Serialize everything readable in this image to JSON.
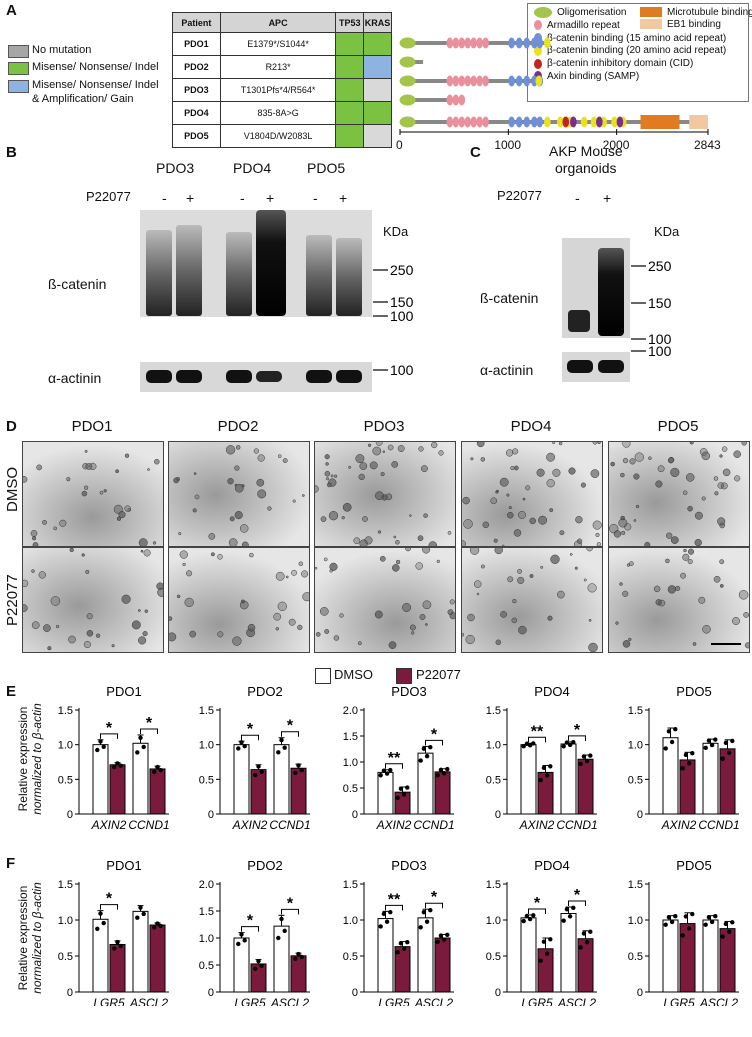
{
  "panels": {
    "A": "A",
    "B": "B",
    "C": "C",
    "D": "D",
    "E": "E",
    "F": "F"
  },
  "legend": {
    "items": [
      {
        "label": "No mutation",
        "color": "#a6a6a6"
      },
      {
        "label": "Misense/ Nonsense/ Indel",
        "color": "#7cc242"
      },
      {
        "label": "Misense/ Nonsense/ Indel",
        "label2": "& Amplification/ Gain",
        "color": "#8fb3e0"
      }
    ]
  },
  "table": {
    "headers": [
      "Patient",
      "APC",
      "TP53",
      "KRAS"
    ],
    "rows": [
      {
        "patient": "PDO1",
        "apc": "E1379*/S1044*",
        "tp53": "#7cc242",
        "kras": "#7cc242"
      },
      {
        "patient": "PDO2",
        "apc": "R213*",
        "tp53": "#7cc242",
        "kras": "#8fb3e0"
      },
      {
        "patient": "PDO3",
        "apc": "T1301Pfs*4/R564*",
        "tp53": "#7cc242",
        "kras": "#d9d9d9"
      },
      {
        "patient": "PDO4",
        "apc": "835-8A>G",
        "tp53": "#7cc242",
        "kras": "#7cc242"
      },
      {
        "patient": "PDO5",
        "apc": "V1804D/W2083L",
        "tp53": "#7cc242",
        "kras": "#d9d9d9"
      }
    ]
  },
  "domain_legend": [
    {
      "label": "Oligomerisation",
      "color": "#a4c44a",
      "shape": "ellipse"
    },
    {
      "label": "Armadillo repeat",
      "color": "#e9909c",
      "shape": "ellipse"
    },
    {
      "label": "β-catenin binding (15 amino acid repeat)",
      "color": "#6f8fd8",
      "shape": "ellipse"
    },
    {
      "label": "β-catenin binding (20 amino acid repeat)",
      "color": "#e9e21e",
      "shape": "ellipse"
    },
    {
      "label": "β-catenin inhibitory domain (CID)",
      "color": "#c4231f",
      "shape": "ellipse"
    },
    {
      "label": "Axin binding (SAMP)",
      "color": "#7a2e8e",
      "shape": "ellipse"
    },
    {
      "label": "Microtubule binding",
      "color": "#e07b22",
      "shape": "rect"
    },
    {
      "label": "EB1 binding",
      "color": "#f2c8a0",
      "shape": "rect"
    }
  ],
  "protein_axis": {
    "ticks": [
      "0",
      "1000",
      "2000",
      "2843"
    ]
  },
  "blotB": {
    "samples": [
      "PDO3",
      "PDO4",
      "PDO5"
    ],
    "treatment": "P22077",
    "signs": [
      "-",
      "+",
      "-",
      "+",
      "-",
      "+"
    ],
    "kda": "KDa",
    "markers": [
      "250",
      "150",
      "100",
      "100"
    ],
    "row1": "ß-catenin",
    "row2": "α-actinin"
  },
  "blotC": {
    "title1": "AKP Mouse",
    "title2": "organoids",
    "treatment": "P22077",
    "signs": [
      "-",
      "+"
    ],
    "kda": "KDa",
    "markers": [
      "250",
      "150",
      "100",
      "100"
    ],
    "row1": "ß-catenin",
    "row2": "α-actinin"
  },
  "panelD": {
    "columns": [
      "PDO1",
      "PDO2",
      "PDO3",
      "PDO4",
      "PDO5"
    ],
    "rows": [
      "DMSO",
      "P22077"
    ]
  },
  "chart_legend": {
    "dmso": "DMSO",
    "treated": "P22077",
    "dmso_color": "#ffffff",
    "treated_color": "#7a1a3c"
  },
  "ylabel_line1": "Relative expression",
  "ylabel_line2": "normalized to β-actin",
  "chart_data": [
    {
      "type": "bar",
      "title": "PDO1",
      "row": "E",
      "categories": [
        "AXIN2",
        "CCND1"
      ],
      "ylim": [
        0,
        1.5
      ],
      "yticks": [
        "0",
        "0.5",
        "1.0",
        "1.5"
      ],
      "series": [
        {
          "name": "DMSO",
          "values": [
            1.0,
            1.02
          ],
          "err": [
            0.07,
            0.12
          ]
        },
        {
          "name": "P22077",
          "values": [
            0.71,
            0.65
          ],
          "err": [
            0.03,
            0.04
          ]
        }
      ],
      "sig": [
        "*",
        "*"
      ]
    },
    {
      "type": "bar",
      "title": "PDO2",
      "row": "E",
      "categories": [
        "AXIN2",
        "CCND1"
      ],
      "ylim": [
        0,
        1.5
      ],
      "yticks": [
        "0",
        "0.5",
        "1.0",
        "1.5"
      ],
      "series": [
        {
          "name": "DMSO",
          "values": [
            1.0,
            1.0
          ],
          "err": [
            0.05,
            0.1
          ]
        },
        {
          "name": "P22077",
          "values": [
            0.64,
            0.66
          ],
          "err": [
            0.07,
            0.06
          ]
        }
      ],
      "sig": [
        "*",
        "*"
      ]
    },
    {
      "type": "bar",
      "title": "PDO3",
      "row": "E",
      "categories": [
        "AXIN2",
        "CCND1"
      ],
      "ylim": [
        0,
        2.0
      ],
      "yticks": [
        "0",
        "0.5",
        "1.0",
        "1.5",
        "2.0"
      ],
      "series": [
        {
          "name": "DMSO",
          "values": [
            0.8,
            1.17
          ],
          "err": [
            0.05,
            0.13
          ]
        },
        {
          "name": "P22077",
          "values": [
            0.42,
            0.81
          ],
          "err": [
            0.1,
            0.06
          ]
        }
      ],
      "sig": [
        "**",
        "*"
      ]
    },
    {
      "type": "bar",
      "title": "PDO4",
      "row": "E",
      "categories": [
        "AXIN2",
        "CCND1"
      ],
      "ylim": [
        0,
        1.5
      ],
      "yticks": [
        "0",
        "0.5",
        "1.0",
        "1.5"
      ],
      "series": [
        {
          "name": "DMSO",
          "values": [
            1.0,
            1.01
          ],
          "err": [
            0.02,
            0.03
          ]
        },
        {
          "name": "P22077",
          "values": [
            0.6,
            0.79
          ],
          "err": [
            0.1,
            0.06
          ]
        }
      ],
      "sig": [
        "**",
        "*"
      ]
    },
    {
      "type": "bar",
      "title": "PDO5",
      "row": "E",
      "categories": [
        "AXIN2",
        "CCND1"
      ],
      "ylim": [
        0,
        1.5
      ],
      "yticks": [
        "0",
        "0.5",
        "1.0",
        "1.5"
      ],
      "series": [
        {
          "name": "DMSO",
          "values": [
            1.1,
            1.02
          ],
          "err": [
            0.14,
            0.06
          ]
        },
        {
          "name": "P22077",
          "values": [
            0.78,
            0.94
          ],
          "err": [
            0.11,
            0.13
          ]
        }
      ],
      "sig": [
        "",
        ""
      ]
    },
    {
      "type": "bar",
      "title": "PDO1",
      "row": "F",
      "categories": [
        "LGR5",
        "ASCL2"
      ],
      "ylim": [
        0,
        1.5
      ],
      "yticks": [
        "0",
        "0.5",
        "1.0",
        "1.5"
      ],
      "series": [
        {
          "name": "DMSO",
          "values": [
            1.01,
            1.12
          ],
          "err": [
            0.12,
            0.08
          ]
        },
        {
          "name": "P22077",
          "values": [
            0.66,
            0.93
          ],
          "err": [
            0.05,
            0.03
          ]
        }
      ],
      "sig": [
        "*",
        ""
      ]
    },
    {
      "type": "bar",
      "title": "PDO2",
      "row": "F",
      "categories": [
        "LGR5",
        "ASCL2"
      ],
      "ylim": [
        0,
        2.0
      ],
      "yticks": [
        "0",
        "0.5",
        "1.0",
        "1.5",
        "2.0"
      ],
      "series": [
        {
          "name": "DMSO",
          "values": [
            1.0,
            1.22
          ],
          "err": [
            0.1,
            0.2
          ]
        },
        {
          "name": "P22077",
          "values": [
            0.52,
            0.67
          ],
          "err": [
            0.08,
            0.05
          ]
        }
      ],
      "sig": [
        "*",
        "*"
      ]
    },
    {
      "type": "bar",
      "title": "PDO3",
      "row": "F",
      "categories": [
        "LGR5",
        "ASCL2"
      ],
      "ylim": [
        0,
        1.5
      ],
      "yticks": [
        "0",
        "0.5",
        "1.0",
        "1.5"
      ],
      "series": [
        {
          "name": "DMSO",
          "values": [
            1.02,
            1.03
          ],
          "err": [
            0.1,
            0.12
          ]
        },
        {
          "name": "P22077",
          "values": [
            0.63,
            0.75
          ],
          "err": [
            0.07,
            0.05
          ]
        }
      ],
      "sig": [
        "**",
        "*"
      ]
    },
    {
      "type": "bar",
      "title": "PDO4",
      "row": "F",
      "categories": [
        "LGR5",
        "ASCL2"
      ],
      "ylim": [
        0,
        1.5
      ],
      "yticks": [
        "0",
        "0.5",
        "1.0",
        "1.5"
      ],
      "series": [
        {
          "name": "DMSO",
          "values": [
            1.03,
            1.09
          ],
          "err": [
            0.04,
            0.09
          ]
        },
        {
          "name": "P22077",
          "values": [
            0.6,
            0.74
          ],
          "err": [
            0.15,
            0.11
          ]
        }
      ],
      "sig": [
        "*",
        "*"
      ]
    },
    {
      "type": "bar",
      "title": "PDO5",
      "row": "F",
      "categories": [
        "LGR5",
        "ASCL2"
      ],
      "ylim": [
        0,
        1.5
      ],
      "yticks": [
        "0",
        "0.5",
        "1.0",
        "1.5"
      ],
      "series": [
        {
          "name": "DMSO",
          "values": [
            1.0,
            1.0
          ],
          "err": [
            0.06,
            0.06
          ]
        },
        {
          "name": "P22077",
          "values": [
            0.95,
            0.88
          ],
          "err": [
            0.15,
            0.1
          ]
        }
      ],
      "sig": [
        "",
        ""
      ]
    }
  ]
}
